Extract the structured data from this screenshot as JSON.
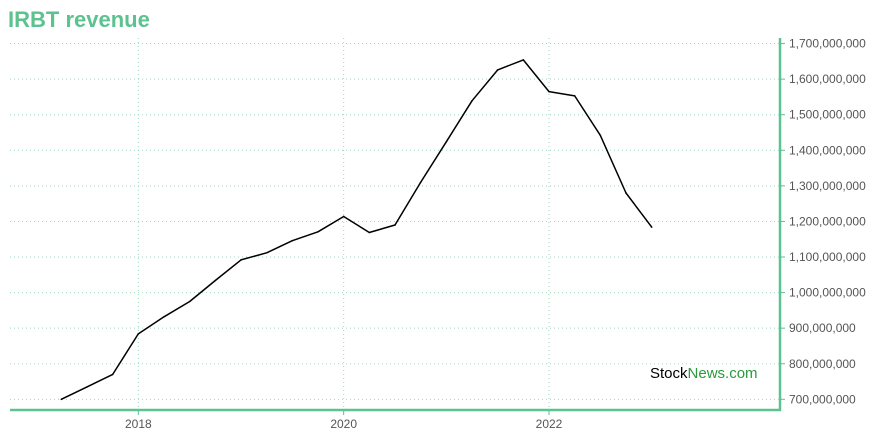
{
  "title": "IRBT revenue",
  "watermark": {
    "part1": "Stock",
    "part2": "News.com"
  },
  "colors": {
    "accent": "#5cc28f",
    "line": "#000000",
    "grid": "#9fd8bf",
    "watermark_green": "#2a9a3c"
  },
  "chart_data": {
    "type": "line",
    "title": "IRBT revenue",
    "xlabel": "",
    "ylabel": "",
    "x_ticks": [
      2018,
      2020,
      2022
    ],
    "y_ticks": [
      700000000,
      800000000,
      900000000,
      1000000000,
      1100000000,
      1200000000,
      1300000000,
      1400000000,
      1500000000,
      1600000000,
      1700000000
    ],
    "y_tick_labels": [
      "700,000,000",
      "800,000,000",
      "900,000,000",
      "1,000,000,000",
      "1,100,000,000",
      "1,200,000,000",
      "1,300,000,000",
      "1,400,000,000",
      "1,500,000,000",
      "1,600,000,000",
      "1,700,000,000"
    ],
    "xlim": [
      2016.75,
      2024.25
    ],
    "ylim": [
      670000000,
      1710000000
    ],
    "grid": true,
    "y_axis_side": "right",
    "series": [
      {
        "x": [
          2017.25,
          2017.5,
          2017.75,
          2018.0,
          2018.25,
          2018.5,
          2018.75,
          2019.0,
          2019.25,
          2019.5,
          2019.75,
          2020.0,
          2020.25,
          2020.5,
          2020.75,
          2021.0,
          2021.25,
          2021.5,
          2021.75,
          2022.0,
          2022.25,
          2022.5,
          2022.75,
          2023.0
        ],
        "values": [
          700000000,
          735000000,
          770000000,
          884000000,
          932000000,
          975000000,
          1034000000,
          1092000000,
          1112000000,
          1146000000,
          1171000000,
          1214000000,
          1169000000,
          1190000000,
          1310000000,
          1424000000,
          1539000000,
          1626000000,
          1654000000,
          1565000000,
          1553000000,
          1442000000,
          1280000000,
          1184000000
        ]
      }
    ]
  }
}
